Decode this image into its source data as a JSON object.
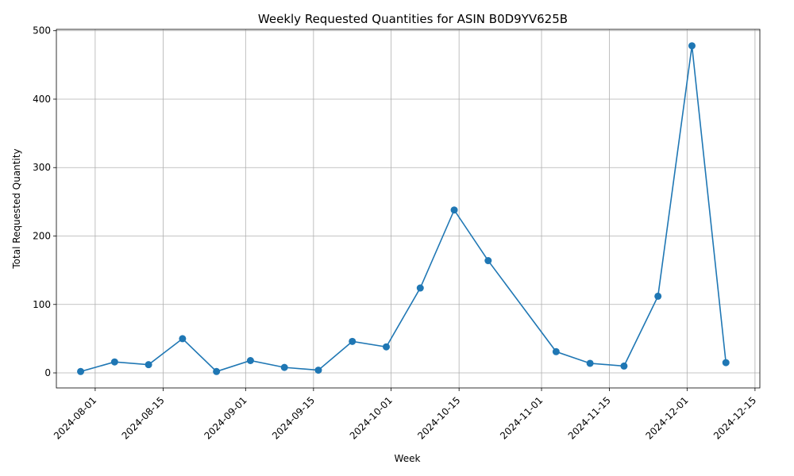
{
  "chart_data": {
    "type": "line",
    "title": "Weekly Requested Quantities for ASIN B0D9YV625B",
    "xlabel": "Week",
    "ylabel": "Total Requested Quantity",
    "x_axis": "date",
    "xlim": [
      "2024-07-24",
      "2024-12-16"
    ],
    "ylim": [
      -22,
      502
    ],
    "grid": true,
    "line_color": "#1f77b4",
    "marker": "circle",
    "x_ticks": [
      "2024-08-01",
      "2024-08-15",
      "2024-09-01",
      "2024-09-15",
      "2024-10-01",
      "2024-10-15",
      "2024-11-01",
      "2024-11-15",
      "2024-12-01",
      "2024-12-15"
    ],
    "y_ticks": [
      0,
      100,
      200,
      300,
      400,
      500
    ],
    "series": [
      {
        "x": [
          "2024-07-29",
          "2024-08-05",
          "2024-08-12",
          "2024-08-19",
          "2024-08-26",
          "2024-09-02",
          "2024-09-09",
          "2024-09-16",
          "2024-09-23",
          "2024-09-30",
          "2024-10-07",
          "2024-10-14",
          "2024-10-21",
          "2024-11-04",
          "2024-11-11",
          "2024-11-18",
          "2024-11-25",
          "2024-12-02",
          "2024-12-09"
        ],
        "y": [
          2,
          16,
          12,
          50,
          2,
          18,
          8,
          4,
          46,
          38,
          124,
          238,
          164,
          31,
          14,
          10,
          112,
          478,
          15
        ]
      }
    ]
  }
}
